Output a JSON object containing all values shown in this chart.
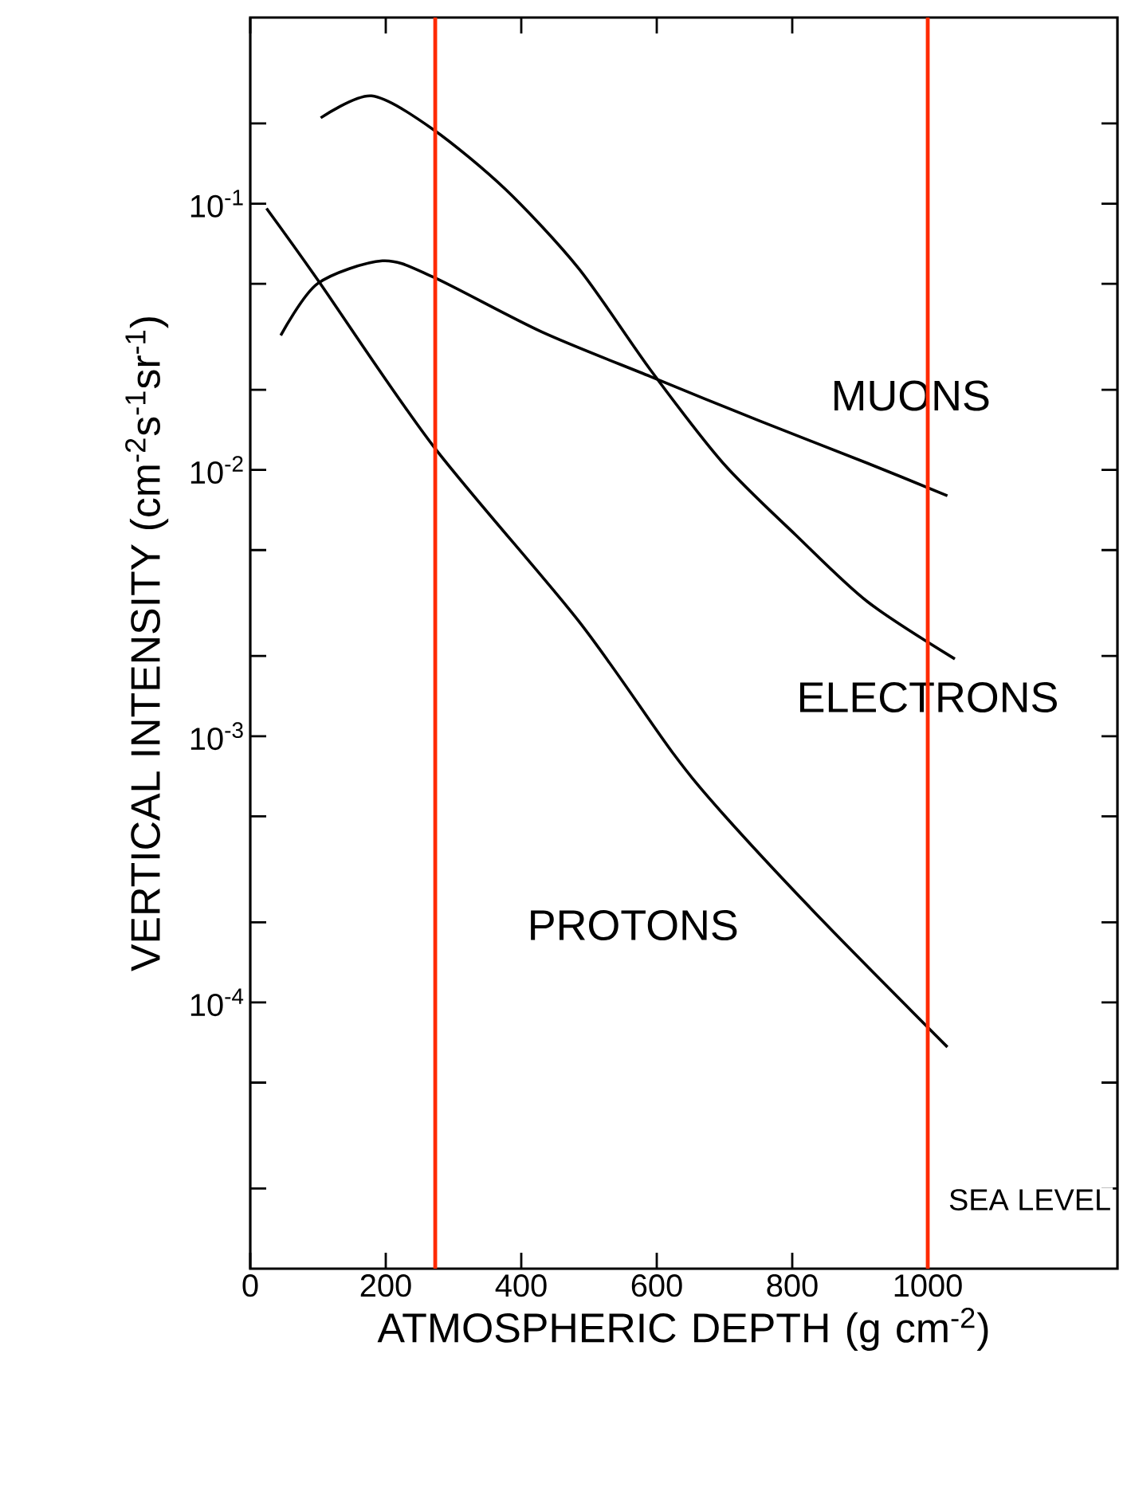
{
  "chart_data": {
    "type": "line",
    "xlabel": "ATMOSPHERIC DEPTH (g cm$^{-2}$)",
    "ylabel": "VERTICAL INTENSITY (cm$^{-2}$s$^{-1}$sr$^{-1}$)",
    "log": "y",
    "xlim": [
      0,
      1280
    ],
    "ylim": [
      1e-05,
      0.5
    ],
    "xticks": [
      0,
      200,
      400,
      600,
      800,
      1000
    ],
    "yticks": [
      {
        "value": 0.2,
        "label": null
      },
      {
        "value": 0.1,
        "label": "10$^{-1}$"
      },
      {
        "value": 0.05,
        "label": null
      },
      {
        "value": 0.02,
        "label": null
      },
      {
        "value": 0.01,
        "label": "10$^{-2}$"
      },
      {
        "value": 0.005,
        "label": null
      },
      {
        "value": 0.002,
        "label": null
      },
      {
        "value": 0.001,
        "label": "10$^{-3}$"
      },
      {
        "value": 0.0005,
        "label": null
      },
      {
        "value": 0.0002,
        "label": null
      },
      {
        "value": 0.0001,
        "label": "10$^{-4}$"
      },
      {
        "value": 5e-05,
        "label": null
      },
      {
        "value": 2e-05,
        "label": null
      }
    ],
    "grid": false,
    "legend": false,
    "marker": "none",
    "line_style": "solid",
    "series": [
      {
        "name": "MUONS",
        "color": "#000000",
        "x": [
          45,
          99,
          195,
          270,
          430,
          591,
          751,
          911,
          1029
        ],
        "values": [
          0.032,
          0.05,
          0.061,
          0.053,
          0.033,
          0.0224,
          0.0153,
          0.0106,
          0.008
        ]
      },
      {
        "name": "ELECTRONS",
        "color": "#000000",
        "x": [
          104,
          179,
          270,
          377,
          485,
          591,
          698,
          805,
          911,
          1040
        ],
        "values": [
          0.21,
          0.254,
          0.19,
          0.113,
          0.057,
          0.0237,
          0.0106,
          0.0057,
          0.0032,
          0.00195
        ]
      },
      {
        "name": "PROTONS",
        "color": "#000000",
        "x": [
          24,
          99,
          270,
          485,
          623,
          698,
          847,
          1029
        ],
        "values": [
          0.096,
          0.052,
          0.0123,
          0.0027,
          0.00087,
          0.00051,
          0.0002,
          6.8e-05
        ]
      }
    ],
    "ref_lines": [
      {
        "axis": "x",
        "value": 273,
        "color": "#ff2a00"
      },
      {
        "axis": "x",
        "value": 1000,
        "color": "#ff2a00"
      }
    ],
    "annotations": [
      "SEA LEVEL"
    ]
  }
}
